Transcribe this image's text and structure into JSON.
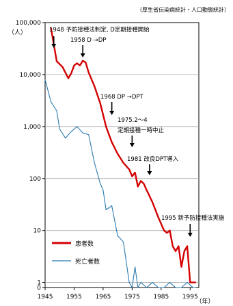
{
  "chart_data": {
    "type": "line",
    "source": "（厚生省伝染病統計・人口動態統計）",
    "y_unit": "（人）",
    "x_unit": "（年）",
    "y_scale": "log",
    "ylim": [
      0.8,
      100000
    ],
    "xlim": [
      1945,
      1998
    ],
    "x_ticks": [
      1945,
      1955,
      1965,
      1975,
      1985,
      1995
    ],
    "y_ticks": [
      {
        "value": 100000,
        "label": "100,000"
      },
      {
        "value": 10000,
        "label": "10,000"
      },
      {
        "value": 1000,
        "label": "1,000"
      },
      {
        "value": 100,
        "label": "100"
      },
      {
        "value": 10,
        "label": "10"
      },
      {
        "value": 1,
        "label": "1"
      },
      {
        "value": 0.8,
        "label": "0"
      }
    ],
    "series": [
      {
        "name": "患者数",
        "color": "#d40000",
        "x": [
          1947,
          1949,
          1951,
          1953,
          1954,
          1955,
          1956,
          1957,
          1958,
          1959,
          1960,
          1962,
          1964,
          1966,
          1968,
          1970,
          1972,
          1974,
          1975,
          1976,
          1977,
          1978,
          1979,
          1980,
          1982,
          1984,
          1986,
          1987,
          1988,
          1989,
          1990,
          1991,
          1992,
          1993,
          1994,
          1995,
          1996,
          1997
        ],
        "y": [
          80000,
          18000,
          14000,
          8500,
          10500,
          15000,
          16500,
          15000,
          18500,
          17000,
          11000,
          6000,
          2800,
          1000,
          500,
          300,
          200,
          150,
          110,
          130,
          70,
          90,
          80,
          60,
          35,
          18,
          10,
          9,
          10,
          5,
          4,
          5,
          2,
          4,
          5,
          1,
          1,
          1
        ]
      },
      {
        "name": "死亡者数",
        "color": "#2a7ab0",
        "x": [
          1945,
          1947,
          1949,
          1950,
          1952,
          1954,
          1956,
          1958,
          1960,
          1962,
          1964,
          1965,
          1966,
          1968,
          1970,
          1972,
          1974,
          1975,
          1976,
          1977,
          1978,
          1980,
          1982,
          1984,
          1986,
          1988,
          1990,
          1992,
          1994,
          1996,
          1997
        ],
        "y": [
          8000,
          3000,
          2000,
          900,
          600,
          800,
          1000,
          750,
          700,
          200,
          80,
          60,
          25,
          30,
          8,
          6,
          1,
          0.8,
          2,
          0.8,
          1,
          0.8,
          1,
          0.8,
          0.8,
          1,
          0.8,
          0.8,
          1,
          0.8,
          0.8
        ]
      }
    ],
    "annotations": [
      {
        "text": "1948 予防接種法制定, D定期接種開始",
        "x": 1948
      },
      {
        "text": "1958 D →DP",
        "x": 1958
      },
      {
        "text": "1968 DP →DPT",
        "x": 1968
      },
      {
        "text": "1975.2〜4",
        "x": 1975
      },
      {
        "text": "定期接種一時中止",
        "x": 1975
      },
      {
        "text": "1981 改良DPT導入",
        "x": 1981
      },
      {
        "text": "1995 新予防接種法実施",
        "x": 1995
      }
    ]
  }
}
